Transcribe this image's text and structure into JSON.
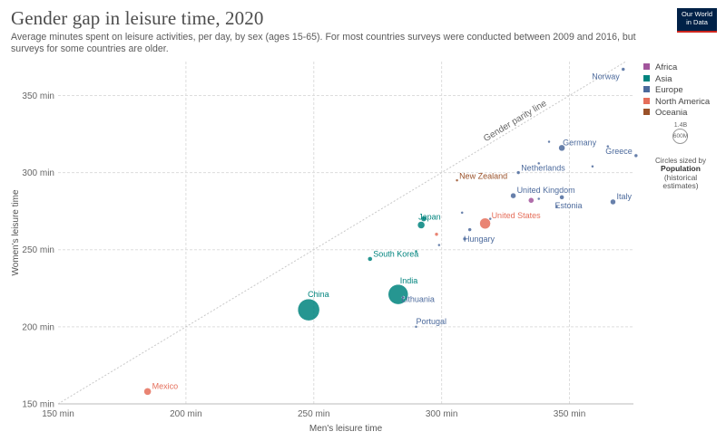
{
  "header": {
    "title": "Gender gap in leisure time, 2020",
    "subtitle": "Average minutes spent on leisure activities, per day, by sex (ages 15-65). For most countries surveys were conducted between 2009 and 2016, but surveys for some countries are older.",
    "logo_line1": "Our World",
    "logo_line2": "in Data"
  },
  "legend": {
    "items": [
      {
        "label": "Africa",
        "color": "#a2559c"
      },
      {
        "label": "Asia",
        "color": "#00847e"
      },
      {
        "label": "Europe",
        "color": "#4c6a9c"
      },
      {
        "label": "North America",
        "color": "#e56e5a"
      },
      {
        "label": "Oceania",
        "color": "#9a5129"
      }
    ],
    "size_top": "1.4B",
    "size_value": "600M",
    "size_caption": "Circles sized by",
    "size_caption_bold": "Population",
    "size_caption_sub": "(historical estimates)"
  },
  "chart_data": {
    "type": "scatter",
    "title": "Gender gap in leisure time, 2020",
    "xlabel": "Men's leisure time",
    "ylabel": "Women's leisure time",
    "xlim": [
      150,
      375
    ],
    "ylim": [
      150,
      372
    ],
    "xticks": [
      150,
      200,
      250,
      300,
      350
    ],
    "yticks": [
      150,
      200,
      250,
      300,
      350
    ],
    "tick_suffix": " min",
    "parity_label": "Gender parity line",
    "points": [
      {
        "label": "Norway",
        "x": 371,
        "y": 367,
        "region": "Europe",
        "r": 2
      },
      {
        "label": "Germany",
        "x": 347,
        "y": 316,
        "region": "Europe",
        "r": 3.5
      },
      {
        "label": "Greece",
        "x": 376,
        "y": 311,
        "region": "Europe",
        "r": 2
      },
      {
        "label": "Netherlands",
        "x": 330,
        "y": 300,
        "region": "Europe",
        "r": 2
      },
      {
        "label": "New Zealand",
        "x": 306,
        "y": 295,
        "region": "Oceania",
        "r": 1.5
      },
      {
        "label": "United Kingdom",
        "x": 328,
        "y": 285,
        "region": "Europe",
        "r": 3
      },
      {
        "label": "Estonia",
        "x": 345,
        "y": 278,
        "region": "Europe",
        "r": 1.5
      },
      {
        "label": "Italy",
        "x": 367,
        "y": 281,
        "region": "Europe",
        "r": 3
      },
      {
        "label": "United States",
        "x": 317,
        "y": 267,
        "region": "North America",
        "r": 6
      },
      {
        "label": "Japan",
        "x": 292,
        "y": 266,
        "region": "Asia",
        "r": 4
      },
      {
        "label": "Hungary",
        "x": 309,
        "y": 257,
        "region": "Europe",
        "r": 2
      },
      {
        "label": "South Korea",
        "x": 272,
        "y": 244,
        "region": "Asia",
        "r": 2.5
      },
      {
        "label": "India",
        "x": 283,
        "y": 221,
        "region": "Asia",
        "r": 11
      },
      {
        "label": "Lithuania",
        "x": 285,
        "y": 219,
        "region": "Europe",
        "r": 1.5
      },
      {
        "label": "China",
        "x": 248,
        "y": 211,
        "region": "Asia",
        "r": 12
      },
      {
        "label": "Portugal",
        "x": 290,
        "y": 200,
        "region": "Europe",
        "r": 1.5
      },
      {
        "label": "Mexico",
        "x": 185,
        "y": 158,
        "region": "North America",
        "r": 4
      },
      {
        "label": "",
        "x": 342,
        "y": 320,
        "region": "Europe",
        "r": 1.5
      },
      {
        "label": "",
        "x": 365,
        "y": 317,
        "region": "Europe",
        "r": 1.5
      },
      {
        "label": "",
        "x": 338,
        "y": 306,
        "region": "Europe",
        "r": 1.5
      },
      {
        "label": "",
        "x": 359,
        "y": 304,
        "region": "Europe",
        "r": 1.5
      },
      {
        "label": "",
        "x": 335,
        "y": 282,
        "region": "Africa",
        "r": 3
      },
      {
        "label": "",
        "x": 338,
        "y": 283,
        "region": "Europe",
        "r": 1.5
      },
      {
        "label": "",
        "x": 347,
        "y": 284,
        "region": "Europe",
        "r": 2.5
      },
      {
        "label": "",
        "x": 308,
        "y": 274,
        "region": "Europe",
        "r": 1.5
      },
      {
        "label": "",
        "x": 293,
        "y": 270,
        "region": "Asia",
        "r": 3
      },
      {
        "label": "",
        "x": 319,
        "y": 270,
        "region": "Europe",
        "r": 1.5
      },
      {
        "label": "",
        "x": 298,
        "y": 260,
        "region": "North America",
        "r": 2
      },
      {
        "label": "",
        "x": 311,
        "y": 263,
        "region": "Europe",
        "r": 2
      },
      {
        "label": "",
        "x": 299,
        "y": 253,
        "region": "Europe",
        "r": 1.5
      },
      {
        "label": "",
        "x": 290,
        "y": 249,
        "region": "Asia",
        "r": 1.5
      }
    ]
  }
}
